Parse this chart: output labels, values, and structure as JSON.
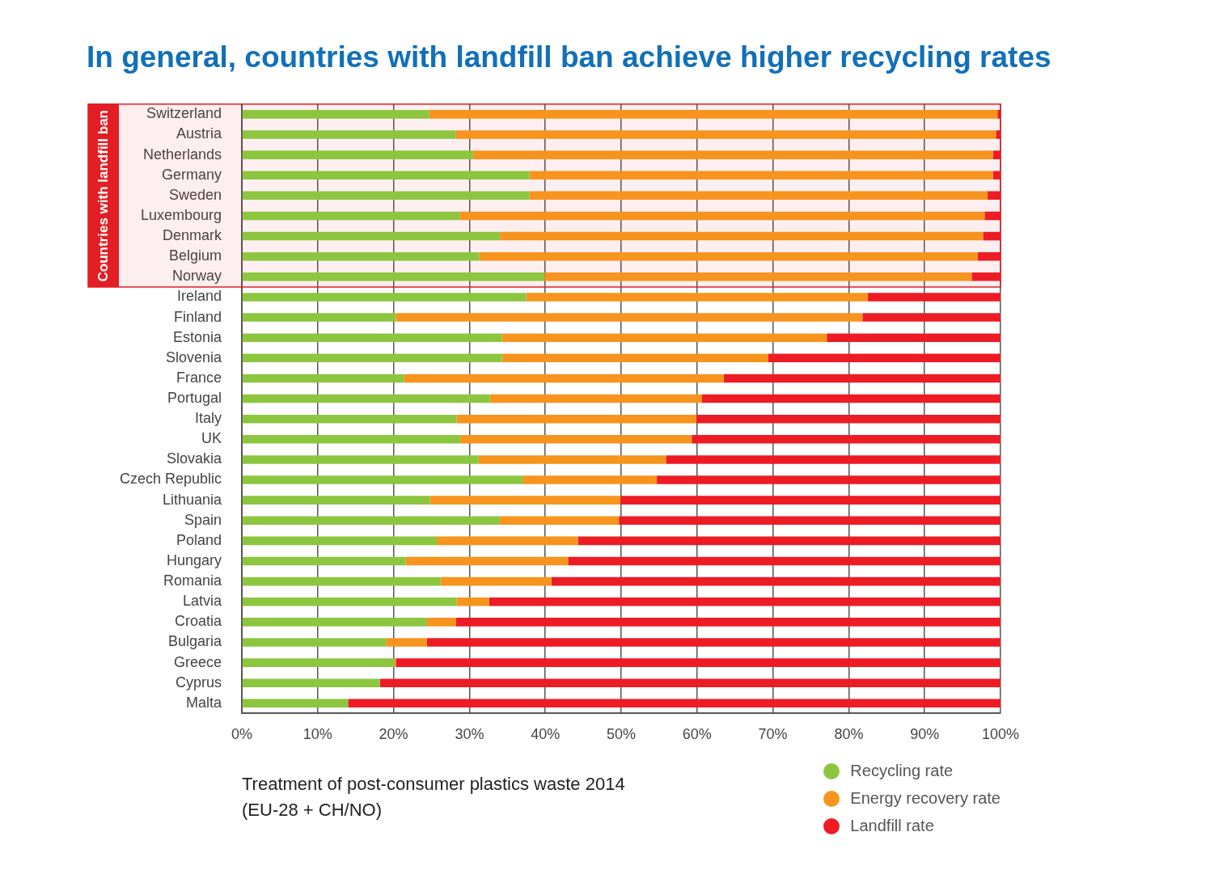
{
  "chart_data": {
    "type": "bar",
    "orientation": "horizontal",
    "stacked": true,
    "title": "In general, countries with landfill ban achieve higher recycling rates",
    "categories": [
      "Switzerland",
      "Austria",
      "Netherlands",
      "Germany",
      "Sweden",
      "Luxembourg",
      "Denmark",
      "Belgium",
      "Norway",
      "Ireland",
      "Finland",
      "Estonia",
      "Slovenia",
      "France",
      "Portugal",
      "Italy",
      "UK",
      "Slovakia",
      "Czech Republic",
      "Lithuania",
      "Spain",
      "Poland",
      "Hungary",
      "Romania",
      "Latvia",
      "Croatia",
      "Bulgaria",
      "Greece",
      "Cyprus",
      "Malta"
    ],
    "series": [
      {
        "name": "Recycling rate",
        "color": "#8cc63f",
        "values": [
          24.7,
          28.2,
          30.5,
          37.9,
          37.9,
          28.7,
          34.0,
          31.3,
          39.9,
          37.5,
          20.3,
          34.3,
          34.3,
          21.4,
          32.7,
          28.3,
          28.8,
          31.2,
          37.0,
          24.8,
          34.0,
          25.7,
          21.6,
          26.2,
          28.3,
          24.4,
          19.0,
          20.1,
          18.2,
          14.0
        ]
      },
      {
        "name": "Energy recovery rate",
        "color": "#f7941d",
        "values": [
          74.9,
          71.2,
          68.5,
          61.1,
          60.4,
          69.2,
          63.7,
          65.7,
          56.3,
          45.0,
          61.5,
          42.8,
          35.1,
          42.1,
          27.9,
          31.6,
          30.5,
          24.7,
          17.7,
          25.1,
          15.7,
          18.6,
          21.4,
          14.6,
          4.3,
          3.8,
          5.4,
          0.2,
          0,
          0
        ]
      },
      {
        "name": "Landfill rate",
        "color": "#ed1c24",
        "values": [
          0.4,
          0.6,
          1.0,
          1.0,
          1.7,
          2.1,
          2.3,
          3.0,
          3.8,
          17.5,
          18.2,
          22.9,
          30.6,
          36.5,
          39.4,
          40.1,
          40.7,
          44.1,
          45.3,
          50.1,
          50.3,
          55.7,
          57.0,
          59.2,
          67.4,
          71.8,
          75.6,
          79.7,
          81.8,
          86.0
        ]
      }
    ],
    "xlim": [
      0,
      100
    ],
    "xticks": [
      {
        "value": 0,
        "label": "0%"
      },
      {
        "value": 10,
        "label": "10%"
      },
      {
        "value": 20,
        "label": "20%"
      },
      {
        "value": 30,
        "label": "30%"
      },
      {
        "value": 40,
        "label": "40%"
      },
      {
        "value": 50,
        "label": "50%"
      },
      {
        "value": 60,
        "label": "60%"
      },
      {
        "value": 70,
        "label": "70%"
      },
      {
        "value": 80,
        "label": "80%"
      },
      {
        "value": 90,
        "label": "90%"
      },
      {
        "value": 100,
        "label": "100%"
      }
    ],
    "grid": "x",
    "legend": "bottom right",
    "bands": [
      {
        "axis": "y",
        "from": "Switzerland",
        "to": "Norway",
        "label": "Countries with landfill ban",
        "color": "#e31e24"
      }
    ],
    "annotations": [
      "Treatment of post-consumer plastics waste 2014 (EU-28 + CH/NO)"
    ]
  }
}
